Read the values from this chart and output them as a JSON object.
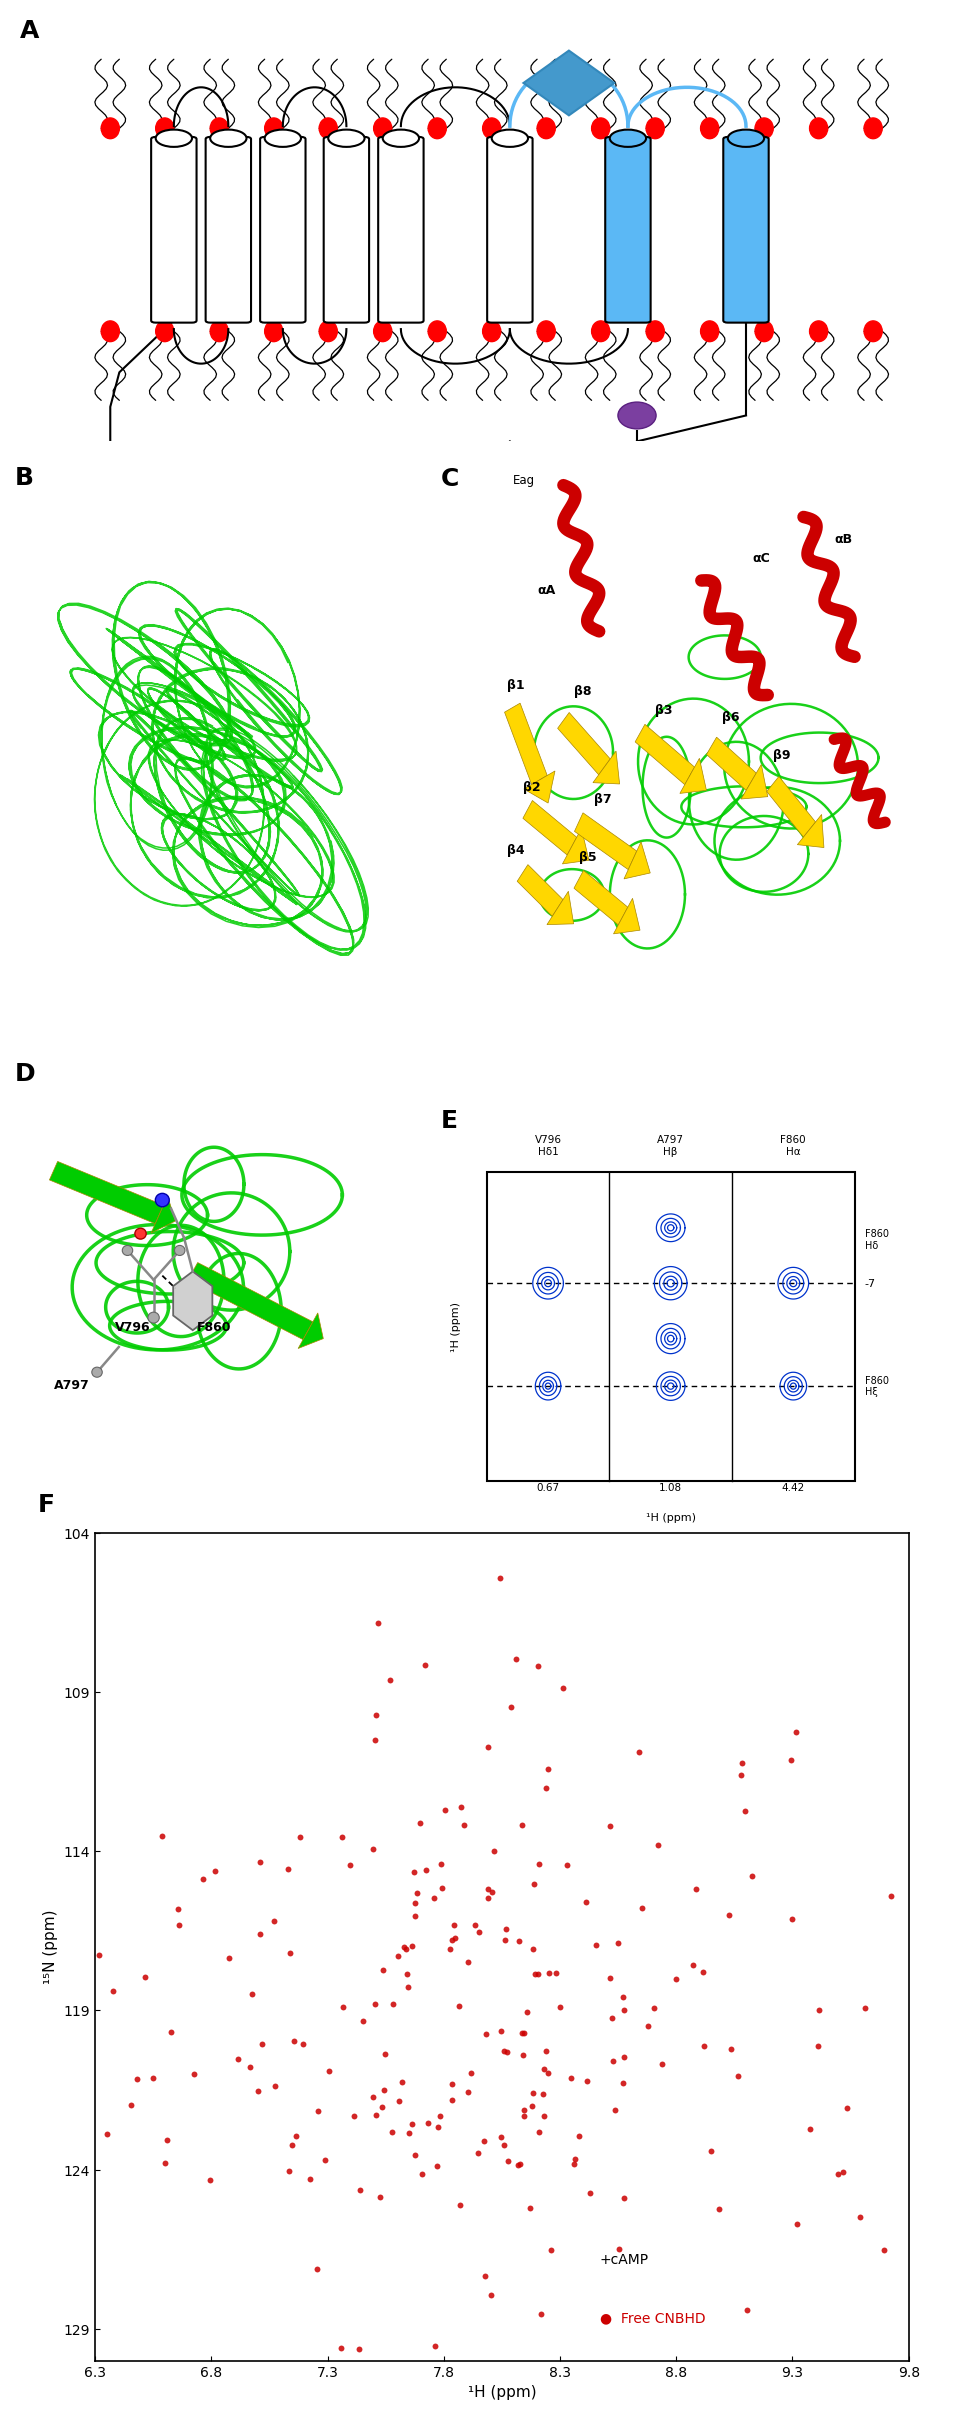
{
  "title": "",
  "panels": [
    "A",
    "B",
    "C",
    "D",
    "E",
    "F"
  ],
  "panel_A": {
    "red_ball_color": "#FF0000",
    "blue_helix_color": "#5BB8F5",
    "blue_diamond_color": "#4499CC",
    "purple_ball_color": "#7B3FA0",
    "eag_box_color": "#F5E6C8",
    "cnbhd_box_color": "#228B22",
    "eag_text": "Eag",
    "cnbhd_text": "CNBHD",
    "red_bar_color": "#CC0000"
  },
  "panel_E": {
    "contour_color": "#0000CC"
  },
  "panel_F": {
    "xlabel": "¹H (ppm)",
    "ylabel": "¹⁵N (ppm)",
    "x_min": 9.8,
    "x_max": 6.3,
    "y_min": 104,
    "y_max": 130,
    "y_ticks": [
      104,
      109,
      114,
      119,
      124,
      129
    ],
    "x_ticks": [
      9.8,
      9.3,
      8.8,
      8.3,
      7.8,
      7.3,
      6.8,
      6.3
    ],
    "dot_color": "#CC0000",
    "dot_size": 18
  },
  "bg_color": "white"
}
